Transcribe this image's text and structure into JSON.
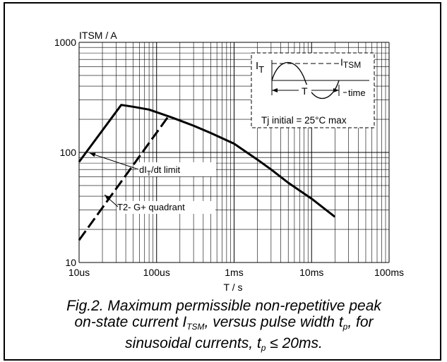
{
  "chart_data": {
    "type": "line",
    "xscale": "log",
    "yscale": "log",
    "xlim": [
      "10us",
      "100ms"
    ],
    "ylim": [
      10,
      1000
    ],
    "xlabel": "T / s",
    "ylabel": "ITSM / A",
    "grid": true,
    "x_ticks": [
      "10us",
      "100us",
      "1ms",
      "10ms",
      "100ms"
    ],
    "y_ticks": [
      "10",
      "100",
      "1000"
    ],
    "series": [
      {
        "style": "solid",
        "x_ms": [
          0.01,
          0.035,
          0.05,
          0.08,
          0.15,
          0.2,
          0.3,
          0.5,
          1,
          2,
          3,
          5,
          10,
          20
        ],
        "y_a": [
          82,
          270,
          260,
          245,
          210,
          195,
          175,
          150,
          120,
          86,
          70,
          53,
          38,
          26
        ]
      },
      {
        "style": "dashed",
        "x_ms": [
          0.01,
          0.14
        ],
        "y_a": [
          16,
          210
        ]
      }
    ],
    "annotations": [
      {
        "text_pre": "dI",
        "sub": "T",
        "text_post": "/dt limit"
      },
      {
        "text": "T2- G+ quadrant"
      }
    ],
    "inset": {
      "i_label": "I",
      "i_sub": "T",
      "peak_label": "I",
      "peak_sub": "TSM",
      "period_label": "T",
      "time_label": "time",
      "note": "Tj initial = 25°C max"
    }
  },
  "caption": {
    "line1": "Fig.2.   Maximum permissible non-repetitive peak",
    "line2a": "on-state current I",
    "line2sub": "TSM",
    "line2b": ", versus pulse width t",
    "line2sub2": "p",
    "line2c": ", for",
    "line3a": "sinusoidal currents, t",
    "line3sub": "p",
    "line3b": " ≤ 20ms."
  }
}
